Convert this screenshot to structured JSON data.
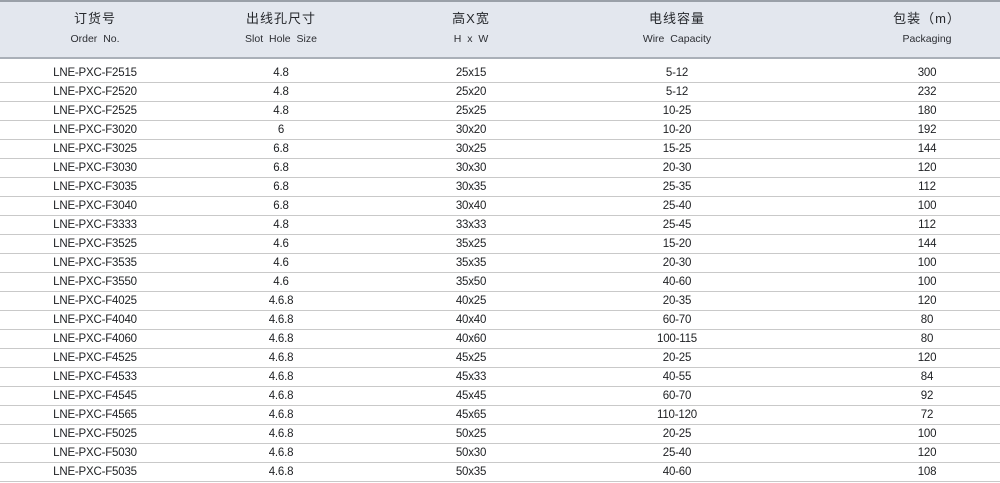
{
  "table": {
    "columns": [
      {
        "zh": "订货号",
        "en": "Order No."
      },
      {
        "zh": "出线孔尺寸",
        "en": "Slot Hole Size"
      },
      {
        "zh": "高X宽",
        "en": "H x W"
      },
      {
        "zh": "电线容量",
        "en": "Wire Capacity"
      },
      {
        "zh": "包装（m）",
        "en": "Packaging"
      }
    ],
    "rows": [
      [
        "LNE-PXC-F2515",
        "4.8",
        "25x15",
        "5-12",
        "300"
      ],
      [
        "LNE-PXC-F2520",
        "4.8",
        "25x20",
        "5-12",
        "232"
      ],
      [
        "LNE-PXC-F2525",
        "4.8",
        "25x25",
        "10-25",
        "180"
      ],
      [
        "LNE-PXC-F3020",
        "6",
        "30x20",
        "10-20",
        "192"
      ],
      [
        "LNE-PXC-F3025",
        "6.8",
        "30x25",
        "15-25",
        "144"
      ],
      [
        "LNE-PXC-F3030",
        "6.8",
        "30x30",
        "20-30",
        "120"
      ],
      [
        "LNE-PXC-F3035",
        "6.8",
        "30x35",
        "25-35",
        "112"
      ],
      [
        "LNE-PXC-F3040",
        "6.8",
        "30x40",
        "25-40",
        "100"
      ],
      [
        "LNE-PXC-F3333",
        "4.8",
        "33x33",
        "25-45",
        "112"
      ],
      [
        "LNE-PXC-F3525",
        "4.6",
        "35x25",
        "15-20",
        "144"
      ],
      [
        "LNE-PXC-F3535",
        "4.6",
        "35x35",
        "20-30",
        "100"
      ],
      [
        "LNE-PXC-F3550",
        "4.6",
        "35x50",
        "40-60",
        "100"
      ],
      [
        "LNE-PXC-F4025",
        "4.6.8",
        "40x25",
        "20-35",
        "120"
      ],
      [
        "LNE-PXC-F4040",
        "4.6.8",
        "40x40",
        "60-70",
        "80"
      ],
      [
        "LNE-PXC-F4060",
        "4.6.8",
        "40x60",
        "100-115",
        "80"
      ],
      [
        "LNE-PXC-F4525",
        "4.6.8",
        "45x25",
        "20-25",
        "120"
      ],
      [
        "LNE-PXC-F4533",
        "4.6.8",
        "45x33",
        "40-55",
        "84"
      ],
      [
        "LNE-PXC-F4545",
        "4.6.8",
        "45x45",
        "60-70",
        "92"
      ],
      [
        "LNE-PXC-F4565",
        "4.6.8",
        "45x65",
        "110-120",
        "72"
      ],
      [
        "LNE-PXC-F5025",
        "4.6.8",
        "50x25",
        "20-25",
        "100"
      ],
      [
        "LNE-PXC-F5030",
        "4.6.8",
        "50x30",
        "25-40",
        "120"
      ],
      [
        "LNE-PXC-F5035",
        "4.6.8",
        "50x35",
        "40-60",
        "108"
      ]
    ],
    "cell_names": [
      "cell-order-no",
      "cell-slot-hole-size",
      "cell-h-w",
      "cell-wire-capacity",
      "cell-packaging"
    ]
  },
  "colors": {
    "header_bg": "#e3e7ee",
    "header_top_border": "#9aa0a8",
    "header_bottom_border": "#aab0b8",
    "row_divider": "#c9c9c9",
    "text": "#1d1f22"
  }
}
